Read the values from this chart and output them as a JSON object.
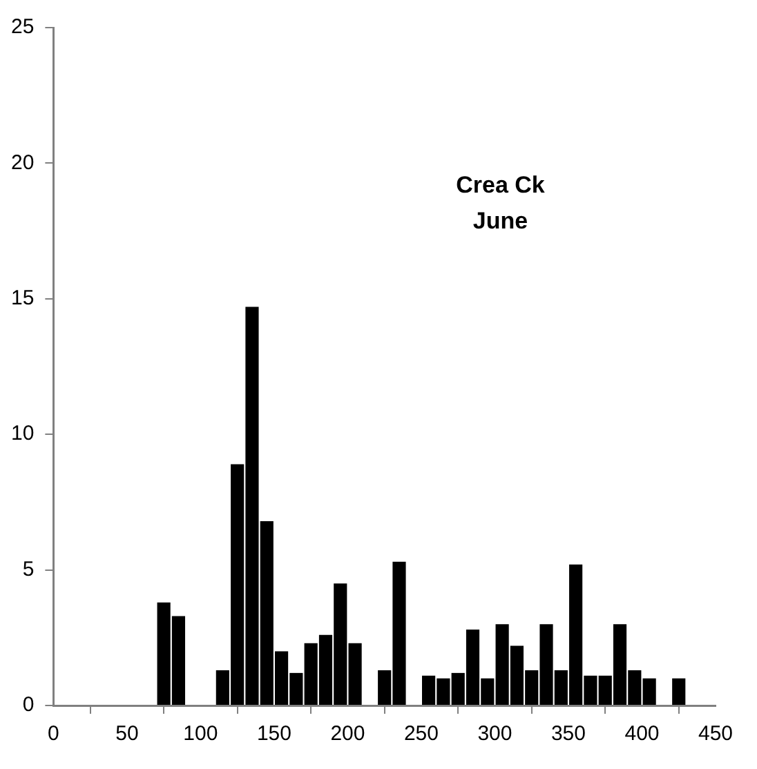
{
  "chart_data": {
    "type": "histogram",
    "title": "Crea Ck\nJune",
    "bins": [
      70,
      80,
      90,
      100,
      110,
      120,
      130,
      140,
      150,
      160,
      170,
      180,
      190,
      200,
      210,
      220,
      230,
      240,
      250,
      260,
      270,
      280,
      290,
      300,
      310,
      320,
      330,
      340,
      350,
      360,
      370,
      380,
      390,
      400,
      410,
      420,
      430
    ],
    "values": [
      3.8,
      3.3,
      0,
      0,
      1.3,
      8.9,
      14.7,
      6.8,
      2.0,
      1.2,
      2.3,
      2.6,
      4.5,
      2.3,
      0,
      1.3,
      5.3,
      0,
      1.1,
      1.0,
      1.2,
      2.8,
      1.0,
      3.0,
      2.2,
      1.3,
      3.0,
      1.3,
      5.2,
      1.1,
      1.1,
      3.0,
      1.3,
      1.0,
      0,
      1.0
    ],
    "color": "#000000",
    "xlim": [
      0,
      450
    ],
    "xticks": [
      0,
      50,
      100,
      150,
      200,
      250,
      300,
      350,
      400,
      450
    ],
    "ylim": [
      0,
      25
    ],
    "yticks": [
      0,
      5,
      10,
      15,
      20,
      25
    ],
    "grid": false,
    "legend": false
  }
}
